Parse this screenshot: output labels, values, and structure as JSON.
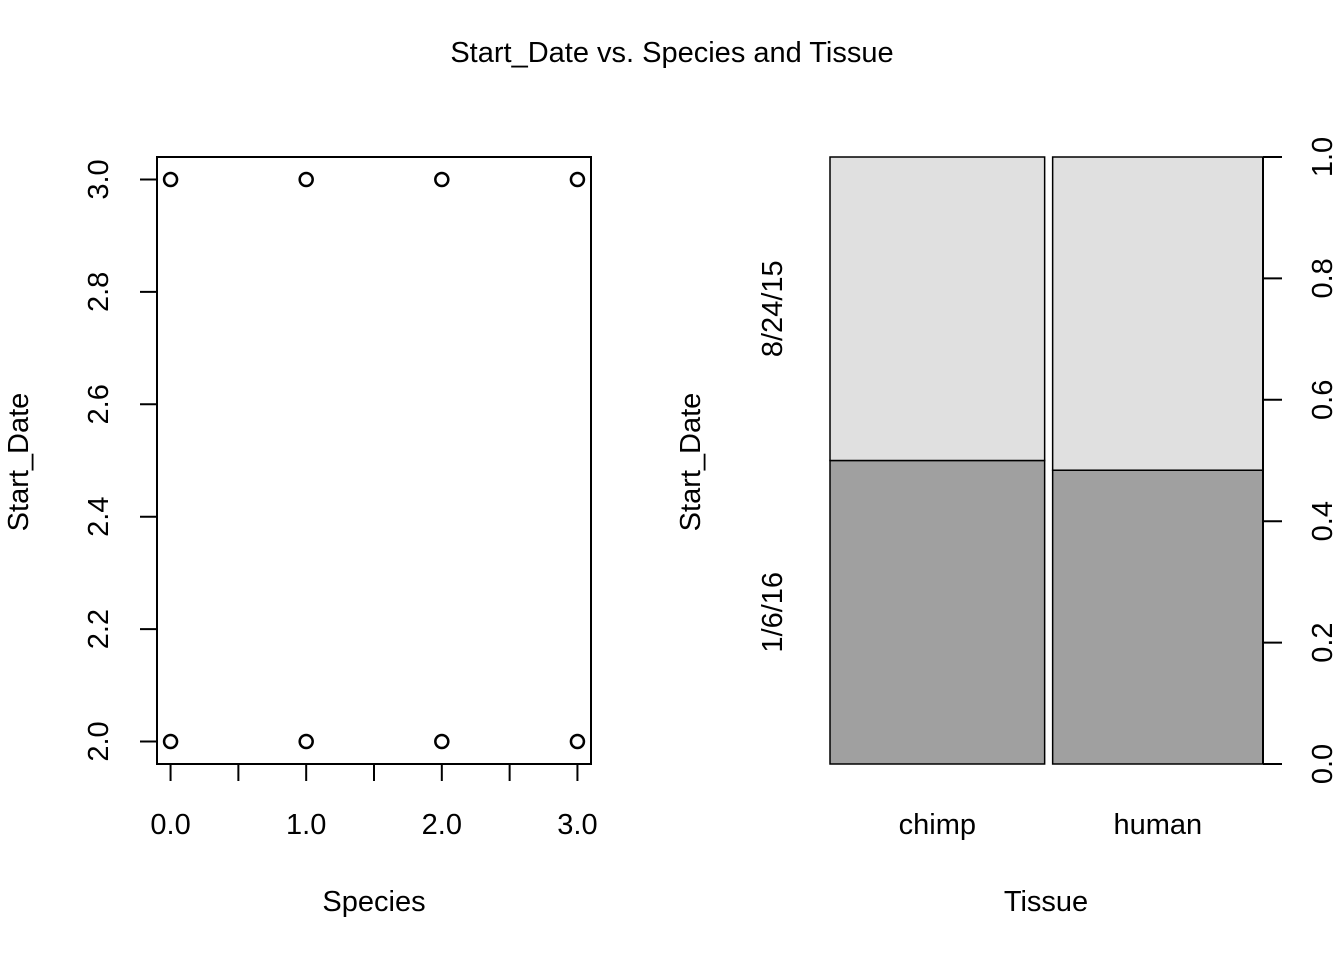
{
  "title": "Start_Date vs. Species and Tissue",
  "chart_data": [
    {
      "type": "scatter",
      "xlabel": "Species",
      "ylabel": "Start_Date",
      "xlim": [
        -0.1,
        3.1
      ],
      "ylim": [
        1.96,
        3.04
      ],
      "xticks": [
        0,
        0.5,
        1,
        1.5,
        2,
        2.5,
        3
      ],
      "xtick_labels": [
        {
          "value": 0,
          "label": "0.0"
        },
        {
          "value": 1,
          "label": "1.0"
        },
        {
          "value": 2,
          "label": "2.0"
        },
        {
          "value": 3,
          "label": "3.0"
        }
      ],
      "yticks": [
        {
          "value": 2.0,
          "label": "2.0"
        },
        {
          "value": 2.2,
          "label": "2.2"
        },
        {
          "value": 2.4,
          "label": "2.4"
        },
        {
          "value": 2.6,
          "label": "2.6"
        },
        {
          "value": 2.8,
          "label": "2.8"
        },
        {
          "value": 3.0,
          "label": "3.0"
        }
      ],
      "points": [
        {
          "x": 0,
          "y": 3
        },
        {
          "x": 1,
          "y": 3
        },
        {
          "x": 2,
          "y": 3
        },
        {
          "x": 3,
          "y": 3
        },
        {
          "x": 0,
          "y": 2
        },
        {
          "x": 1,
          "y": 2
        },
        {
          "x": 2,
          "y": 2
        },
        {
          "x": 3,
          "y": 2
        }
      ]
    },
    {
      "type": "spineplot",
      "xlabel": "Tissue",
      "ylabel": "Start_Date",
      "categories": [
        "chimp",
        "human"
      ],
      "category_widths": [
        0.5,
        0.49
      ],
      "levels": [
        "1/6/16",
        "8/24/15"
      ],
      "level_colors": [
        "#a0a0a0",
        "#e0e0e0"
      ],
      "proportions": [
        [
          0.5,
          0.5
        ],
        [
          0.484,
          0.516
        ]
      ],
      "right_ylim": [
        0,
        1
      ],
      "right_yticks": [
        {
          "value": 0.0,
          "label": "0.0"
        },
        {
          "value": 0.2,
          "label": "0.2"
        },
        {
          "value": 0.4,
          "label": "0.4"
        },
        {
          "value": 0.6,
          "label": "0.6"
        },
        {
          "value": 0.8,
          "label": "0.8"
        },
        {
          "value": 1.0,
          "label": "1.0"
        }
      ]
    }
  ]
}
